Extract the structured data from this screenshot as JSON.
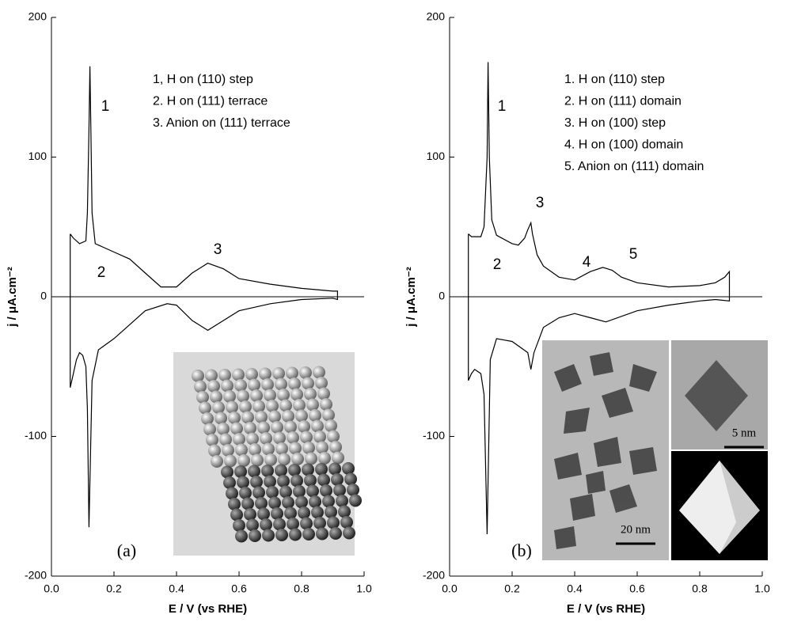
{
  "chart_data": [
    {
      "type": "line",
      "panel_label": "(a)",
      "x_label": "E / V (vs RHE)",
      "y_label": "j / μA.cm⁻²",
      "xlim": [
        0,
        1
      ],
      "ylim": [
        -200,
        200
      ],
      "xticks": [
        {
          "value": 0,
          "label": "0.0"
        },
        {
          "value": 0.2,
          "label": "0.2"
        },
        {
          "value": 0.4,
          "label": "0.4"
        },
        {
          "value": 0.6,
          "label": "0.6"
        },
        {
          "value": 0.8,
          "label": "0.8"
        },
        {
          "value": 1,
          "label": "1.0"
        }
      ],
      "yticks": [
        -200,
        -100,
        0,
        100,
        200
      ],
      "hline": 0,
      "color": "#000000",
      "x": [
        0.06,
        0.07,
        0.09,
        0.11,
        0.115,
        0.12,
        0.123,
        0.126,
        0.13,
        0.14,
        0.2,
        0.25,
        0.3,
        0.35,
        0.4,
        0.45,
        0.5,
        0.55,
        0.6,
        0.7,
        0.8,
        0.9,
        0.915,
        0.915,
        0.9,
        0.8,
        0.7,
        0.6,
        0.55,
        0.5,
        0.45,
        0.4,
        0.37,
        0.3,
        0.25,
        0.2,
        0.15,
        0.13,
        0.12,
        0.115,
        0.11,
        0.1,
        0.09,
        0.08,
        0.07,
        0.06,
        0.06
      ],
      "values": [
        45,
        42,
        38,
        40,
        60,
        120,
        165,
        120,
        60,
        38,
        32,
        27,
        17,
        7,
        7,
        17,
        24,
        20,
        13,
        9,
        6,
        4,
        4,
        -2,
        -1,
        -2,
        -5,
        -10,
        -17,
        -24,
        -17,
        -6,
        -5,
        -10,
        -20,
        -30,
        -38,
        -60,
        -165,
        -80,
        -50,
        -42,
        -40,
        -45,
        -55,
        -65,
        45
      ],
      "annotations": [
        "1",
        "2",
        "3"
      ],
      "notes": [
        "1, H on (110) step",
        "2. H on (111) terrace",
        "3. Anion on (111) terrace"
      ]
    },
    {
      "type": "line",
      "panel_label": "(b)",
      "x_label": "E / V (vs RHE)",
      "y_label": "j / μA.cm⁻²",
      "xlim": [
        0,
        1
      ],
      "ylim": [
        -200,
        200
      ],
      "xticks": [
        {
          "value": 0,
          "label": "0.0"
        },
        {
          "value": 0.2,
          "label": "0.2"
        },
        {
          "value": 0.4,
          "label": "0.4"
        },
        {
          "value": 0.6,
          "label": "0.6"
        },
        {
          "value": 0.8,
          "label": "0.8"
        },
        {
          "value": 1,
          "label": "1.0"
        }
      ],
      "yticks": [
        -200,
        -100,
        0,
        100,
        200
      ],
      "hline": 0,
      "color": "#000000",
      "x": [
        0.06,
        0.07,
        0.1,
        0.11,
        0.12,
        0.123,
        0.127,
        0.135,
        0.15,
        0.2,
        0.22,
        0.24,
        0.25,
        0.26,
        0.265,
        0.28,
        0.3,
        0.35,
        0.4,
        0.45,
        0.49,
        0.52,
        0.55,
        0.6,
        0.7,
        0.8,
        0.85,
        0.88,
        0.895,
        0.895,
        0.85,
        0.8,
        0.7,
        0.6,
        0.5,
        0.45,
        0.4,
        0.35,
        0.3,
        0.27,
        0.26,
        0.25,
        0.2,
        0.15,
        0.13,
        0.12,
        0.11,
        0.1,
        0.08,
        0.07,
        0.06,
        0.06
      ],
      "values": [
        45,
        43,
        43,
        50,
        100,
        168,
        100,
        55,
        44,
        38,
        37,
        42,
        48,
        53,
        45,
        30,
        22,
        14,
        12,
        18,
        21,
        19,
        14,
        10,
        7,
        8,
        10,
        14,
        18,
        -3,
        -2,
        -3,
        -6,
        -10,
        -18,
        -15,
        -12,
        -15,
        -22,
        -40,
        -52,
        -40,
        -32,
        -30,
        -45,
        -170,
        -70,
        -55,
        -52,
        -55,
        -60,
        45
      ],
      "annotations": [
        "1",
        "2",
        "3",
        "4",
        "5"
      ],
      "notes": [
        "1. H on (110) step",
        "2. H on (111) domain",
        "3. H on (100) step",
        "4. H on (100) domain",
        "5. Anion on (111) domain"
      ],
      "inset_labels": [
        "20 nm",
        "5 nm"
      ]
    }
  ]
}
